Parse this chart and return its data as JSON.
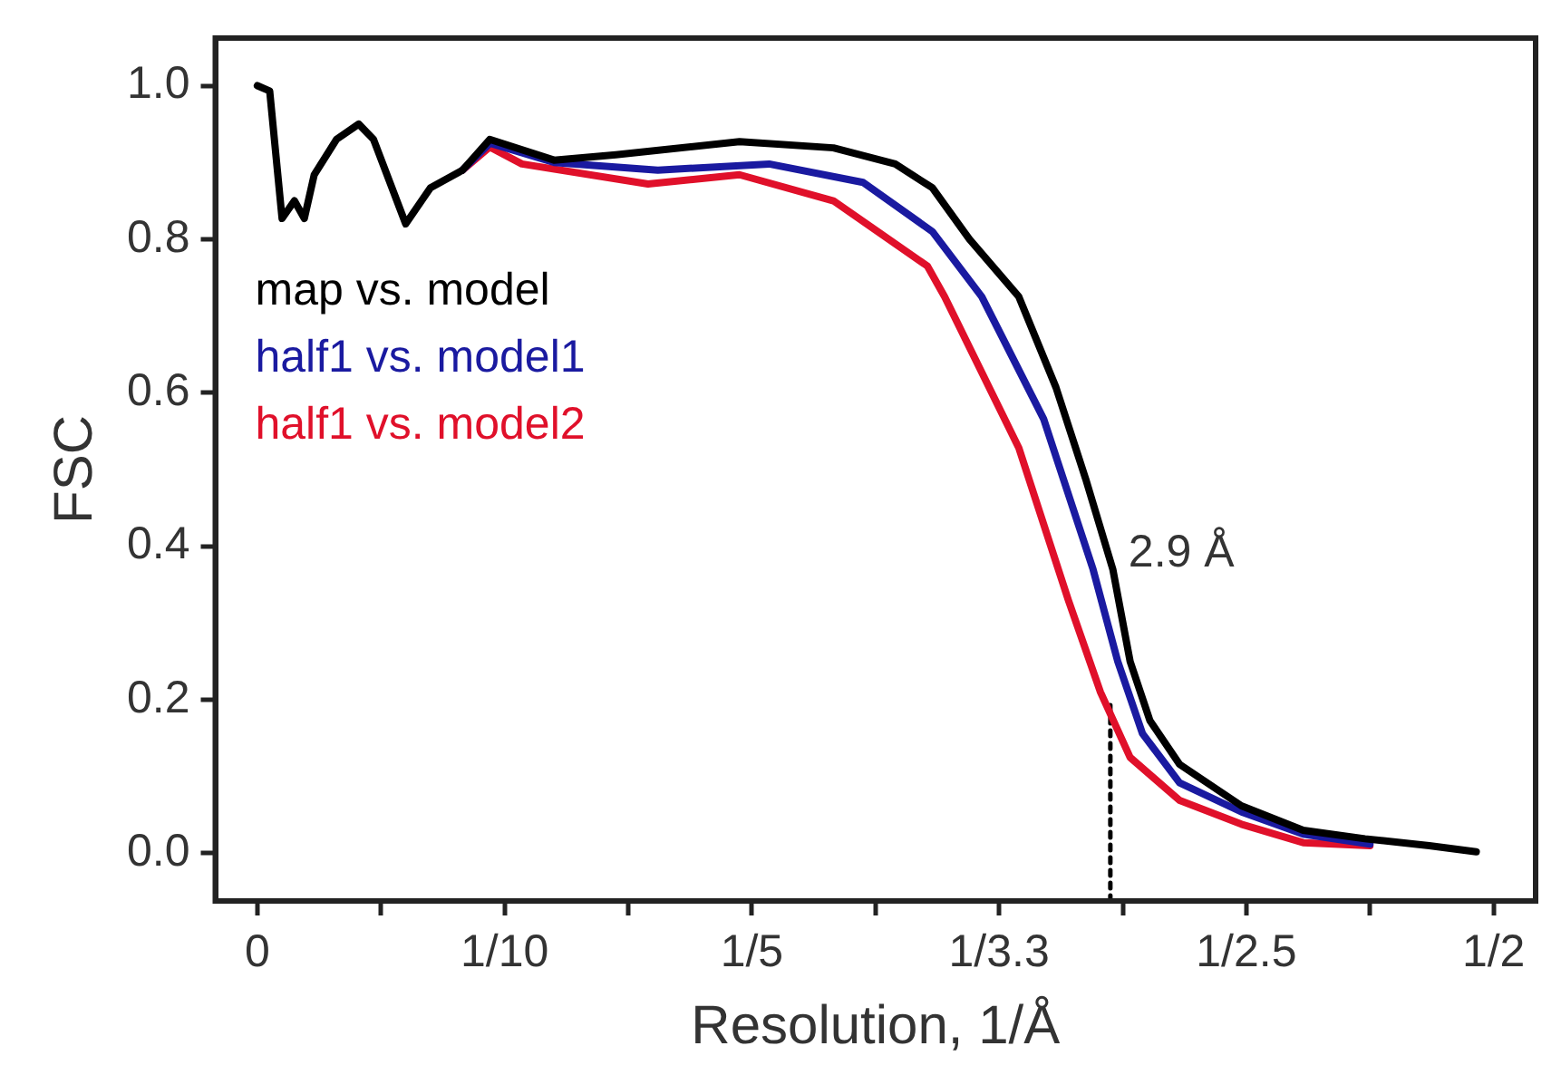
{
  "chart_data": {
    "type": "line",
    "xlabel": "Resolution, 1/Å",
    "ylabel": "FSC",
    "xlim": [
      -0.017,
      0.517
    ],
    "ylim": [
      -0.062,
      1.062
    ],
    "xticks": [
      {
        "value": 0,
        "label": "0"
      },
      {
        "value": 0.05,
        "label": null
      },
      {
        "value": 0.1,
        "label": "1/10"
      },
      {
        "value": 0.15,
        "label": null
      },
      {
        "value": 0.2,
        "label": "1/5"
      },
      {
        "value": 0.25,
        "label": null
      },
      {
        "value": 0.3,
        "label": "1/3.3"
      },
      {
        "value": 0.35,
        "label": null
      },
      {
        "value": 0.4,
        "label": "1/2.5"
      },
      {
        "value": 0.45,
        "label": null
      },
      {
        "value": 0.5,
        "label": "1/2"
      }
    ],
    "yticks": [
      {
        "value": 0,
        "label": "0.0"
      },
      0.2,
      0.4,
      0.6,
      0.8,
      {
        "value": 1,
        "label": "1.0"
      }
    ],
    "grid": false,
    "legend": "top left",
    "marker": "none",
    "line_style": "solid",
    "annotations": [
      {
        "text": "2.9 Å",
        "x": 0.345,
        "y": 0.39
      }
    ],
    "series": [
      {
        "name": "map vs. model",
        "color": "#000000",
        "x": [
          0,
          0.005,
          0.01,
          0.015,
          0.019,
          0.023,
          0.032,
          0.041,
          0.047,
          0.06,
          0.07,
          0.083,
          0.094,
          0.12,
          0.145,
          0.195,
          0.233,
          0.258,
          0.273,
          0.288,
          0.308,
          0.323,
          0.335,
          0.346,
          0.353,
          0.361,
          0.373,
          0.398,
          0.423,
          0.448,
          0.474,
          0.493
        ],
        "values": [
          1.0,
          0.993,
          0.827,
          0.85,
          0.827,
          0.884,
          0.93,
          0.95,
          0.93,
          0.82,
          0.867,
          0.89,
          0.93,
          0.903,
          0.91,
          0.927,
          0.919,
          0.898,
          0.867,
          0.8,
          0.725,
          0.607,
          0.488,
          0.37,
          0.25,
          0.173,
          0.116,
          0.062,
          0.03,
          0.019,
          0.01,
          0.002
        ]
      },
      {
        "name": "half1 vs. model1",
        "color": "#1a1aa0",
        "x": [
          0.083,
          0.094,
          0.12,
          0.162,
          0.207,
          0.245,
          0.273,
          0.293,
          0.318,
          0.338,
          0.348,
          0.358,
          0.373,
          0.398,
          0.423,
          0.45
        ],
        "values": [
          0.89,
          0.925,
          0.9,
          0.89,
          0.898,
          0.874,
          0.81,
          0.725,
          0.566,
          0.37,
          0.25,
          0.156,
          0.092,
          0.054,
          0.025,
          0.012
        ]
      },
      {
        "name": "half1 vs. model2",
        "color": "#e0102a",
        "x": [
          0.083,
          0.094,
          0.107,
          0.158,
          0.195,
          0.233,
          0.271,
          0.278,
          0.308,
          0.328,
          0.341,
          0.353,
          0.373,
          0.398,
          0.423,
          0.45
        ],
        "values": [
          0.89,
          0.92,
          0.898,
          0.872,
          0.884,
          0.85,
          0.765,
          0.725,
          0.528,
          0.33,
          0.21,
          0.125,
          0.069,
          0.038,
          0.014,
          0.01
        ]
      },
      {
        "color": "#000000",
        "line_style": "dotted",
        "x": [
          0.345,
          0.345
        ],
        "values": [
          -0.062,
          0.2
        ]
      }
    ]
  }
}
